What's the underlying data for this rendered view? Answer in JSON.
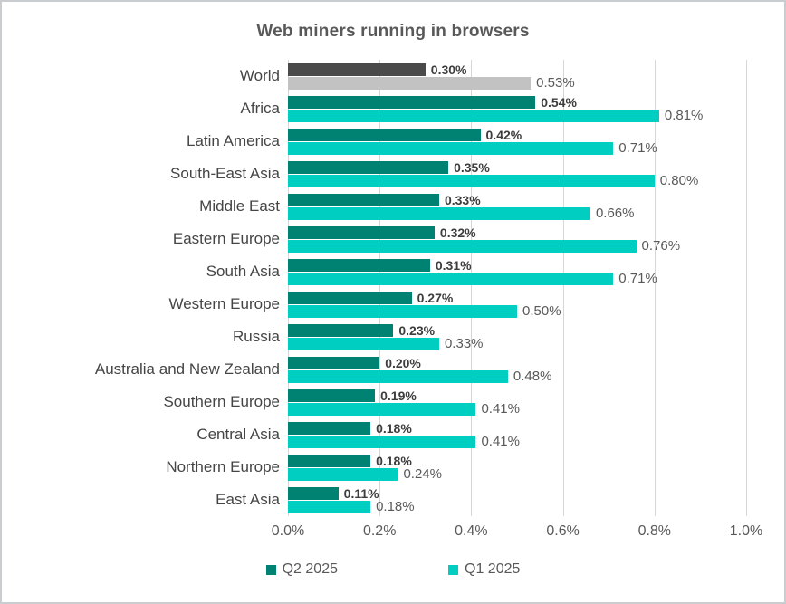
{
  "title": "Web miners running in browsers",
  "chart_data": {
    "type": "bar",
    "orientation": "horizontal",
    "title": "Web miners running in browsers",
    "xlabel": "",
    "ylabel": "",
    "xlim": [
      0,
      1.0
    ],
    "x_tick_labels": [
      "0.0%",
      "0.2%",
      "0.4%",
      "0.6%",
      "0.8%",
      "1.0%"
    ],
    "grid": true,
    "legend_position": "bottom",
    "categories": [
      "World",
      "Africa",
      "Latin America",
      "South-East Asia",
      "Middle East",
      "Eastern Europe",
      "South Asia",
      "Western Europe",
      "Russia",
      "Australia and New Zealand",
      "Southern Europe",
      "Central Asia",
      "Northern Europe",
      "East Asia"
    ],
    "series": [
      {
        "name": "Q2 2025",
        "color": "#008272",
        "world_bar_color": "#4a4a4a",
        "values": [
          0.3,
          0.54,
          0.42,
          0.35,
          0.33,
          0.32,
          0.31,
          0.27,
          0.23,
          0.2,
          0.19,
          0.18,
          0.18,
          0.11
        ],
        "data_labels": [
          "0.30%",
          "0.54%",
          "0.42%",
          "0.35%",
          "0.33%",
          "0.32%",
          "0.31%",
          "0.27%",
          "0.23%",
          "0.20%",
          "0.19%",
          "0.18%",
          "0.18%",
          "0.11%"
        ]
      },
      {
        "name": "Q1 2025",
        "color": "#00cec0",
        "world_bar_color": "#c2c2c2",
        "values": [
          0.53,
          0.81,
          0.71,
          0.8,
          0.66,
          0.76,
          0.71,
          0.5,
          0.33,
          0.48,
          0.41,
          0.41,
          0.24,
          0.18
        ],
        "data_labels": [
          "0.53%",
          "0.81%",
          "0.71%",
          "0.80%",
          "0.66%",
          "0.76%",
          "0.71%",
          "0.50%",
          "0.33%",
          "0.48%",
          "0.41%",
          "0.41%",
          "0.24%",
          "0.18%"
        ]
      }
    ]
  },
  "legend": {
    "items": [
      {
        "label": "Q2 2025",
        "color": "#008272"
      },
      {
        "label": "Q1 2025",
        "color": "#00cec0"
      }
    ]
  },
  "colors": {
    "q2_bar": "#008272",
    "q1_bar": "#00cec0",
    "world_q2_bar": "#4a4a4a",
    "world_q1_bar": "#c2c2c2",
    "gridline": "#d6d6d6",
    "title_text": "#595959",
    "category_text": "#454545",
    "value_label_bold": "#3d3d3d",
    "value_label_regular": "#595959",
    "axis_text": "#595959",
    "frame_border": "#c9cdcf"
  }
}
